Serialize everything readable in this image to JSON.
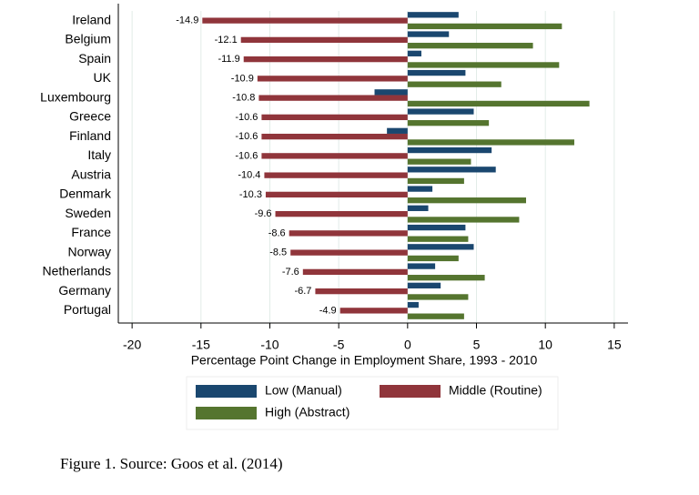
{
  "chart_data": {
    "type": "hbar",
    "categories": [
      "Ireland",
      "Belgium",
      "Spain",
      "UK",
      "Luxembourg",
      "Greece",
      "Finland",
      "Italy",
      "Austria",
      "Denmark",
      "Sweden",
      "France",
      "Norway",
      "Netherlands",
      "Germany",
      "Portugal"
    ],
    "series": [
      {
        "name": "Low (Manual)",
        "color": "#1a476f",
        "values": [
          3.7,
          3.0,
          1.0,
          4.2,
          -2.4,
          4.8,
          -1.5,
          6.1,
          6.4,
          1.8,
          1.5,
          4.2,
          4.8,
          2.0,
          2.4,
          0.8
        ]
      },
      {
        "name": "Middle (Routine)",
        "color": "#90353b",
        "labels": true,
        "values": [
          -14.9,
          -12.1,
          -11.9,
          -10.9,
          -10.8,
          -10.6,
          -10.6,
          -10.6,
          -10.4,
          -10.3,
          -9.6,
          -8.6,
          -8.5,
          -7.6,
          -6.7,
          -4.9
        ]
      },
      {
        "name": "High (Abstract)",
        "color": "#55752f",
        "values": [
          11.2,
          9.1,
          11.0,
          6.8,
          13.2,
          5.9,
          12.1,
          4.6,
          4.1,
          8.6,
          8.1,
          4.4,
          3.7,
          5.6,
          4.4,
          4.1
        ]
      }
    ],
    "xlabel": "Percentage Point Change in Employment Share, 1993 - 2010",
    "xlim": [
      -21,
      16
    ],
    "xticks": [
      -20,
      -15,
      -10,
      -5,
      0,
      5,
      10,
      15
    ],
    "grid": true,
    "caption": "Figure 1. Source: Goos et al. (2014)"
  }
}
